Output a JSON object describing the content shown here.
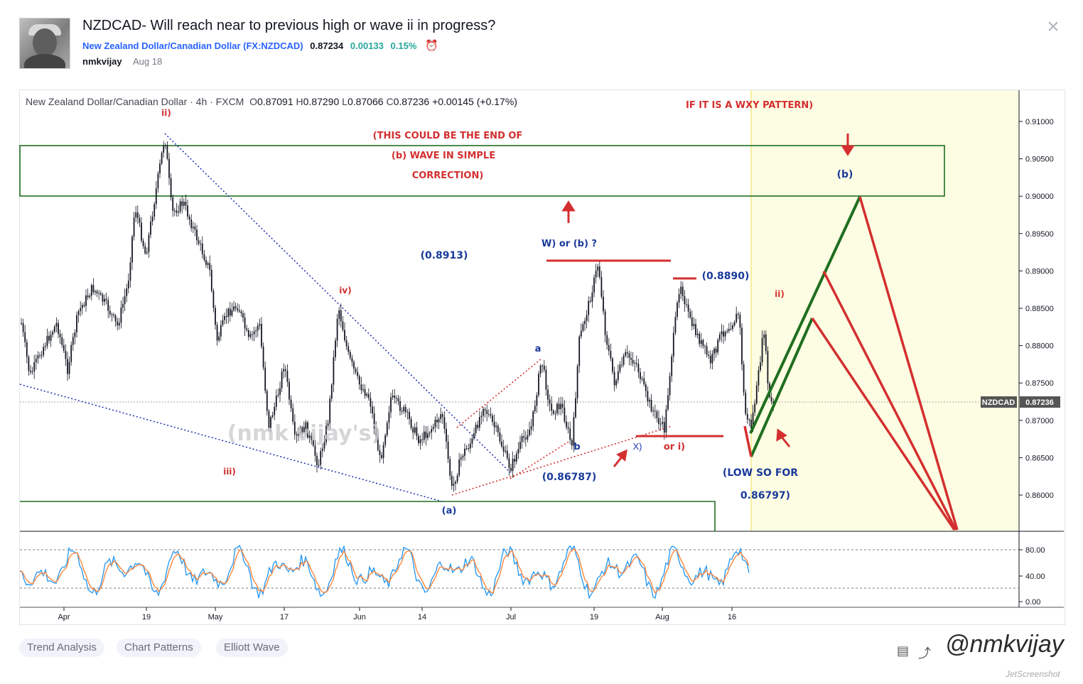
{
  "idea": {
    "title": "NZDCAD- Will reach near to previous high or wave ii in progress?",
    "symbol_name": "New Zealand Dollar/Canadian Dollar",
    "symbol_code_open": "(",
    "symbol_code": "FX:NZDCAD",
    "symbol_code_close": ")",
    "price": "0.87234",
    "change": "0.00133",
    "change_pct": "0.15%",
    "author": "nmkvijay",
    "date": "Aug 18"
  },
  "chart": {
    "legend_title": "New Zealand Dollar/Canadian Dollar · 4h · FXCM",
    "ohlc": {
      "o_label": "O",
      "o": "0.87091",
      "h_label": "H",
      "h": "0.87290",
      "l_label": "L",
      "l": "0.87066",
      "c_label": "C",
      "c": "0.87236",
      "chg": "+0.00145 (+0.17%)"
    },
    "price_ticks": [
      "0.91000",
      "0.90500",
      "0.90000",
      "0.89500",
      "0.89000",
      "0.88500",
      "0.88000",
      "0.87500",
      "0.87000",
      "0.86500",
      "0.86000"
    ],
    "current_symbol_label": "NZDCAD",
    "current_price_label": "0.87236",
    "osc_ticks": [
      "80.00",
      "40.00",
      "0.00"
    ],
    "time_ticks": [
      "Apr",
      "19",
      "May",
      "17",
      "Jun",
      "14",
      "Jul",
      "19",
      "Aug",
      "16"
    ],
    "annotations": {
      "wxy": "IF IT IS A WXY PATTERN)",
      "end1": "(THIS COULD BE THE END OF",
      "end2": "(b) WAVE IN SIMPLE",
      "end3": "CORRECTION)",
      "b_target": "(b)",
      "w_or_b": "W) or (b) ?",
      "level_8913": "(0.8913)",
      "level_8890": "(0.8890)",
      "ii_top": "ii)",
      "ii_right": "ii)",
      "iv": "iv)",
      "iii": "iii)",
      "a_label": "a",
      "b_label": "b",
      "x_label": "X)",
      "or_i": "or i)",
      "level_86787": "(0.86787)",
      "low1": "(LOW SO FOR",
      "low2": "0.86797)",
      "a_paren": "(a)",
      "watermark": "(nmk vijay's)"
    }
  },
  "tags": [
    "Trend Analysis",
    "Chart Patterns",
    "Elliott Wave"
  ],
  "footer": {
    "handle": "@nmkvijay",
    "small": "JetScreenshot"
  },
  "colors": {
    "red": "#d32f2f",
    "blue": "#1a3a9a",
    "green": "#1f6e1f",
    "candle": "#131722",
    "highlight": "#fdfde3"
  }
}
